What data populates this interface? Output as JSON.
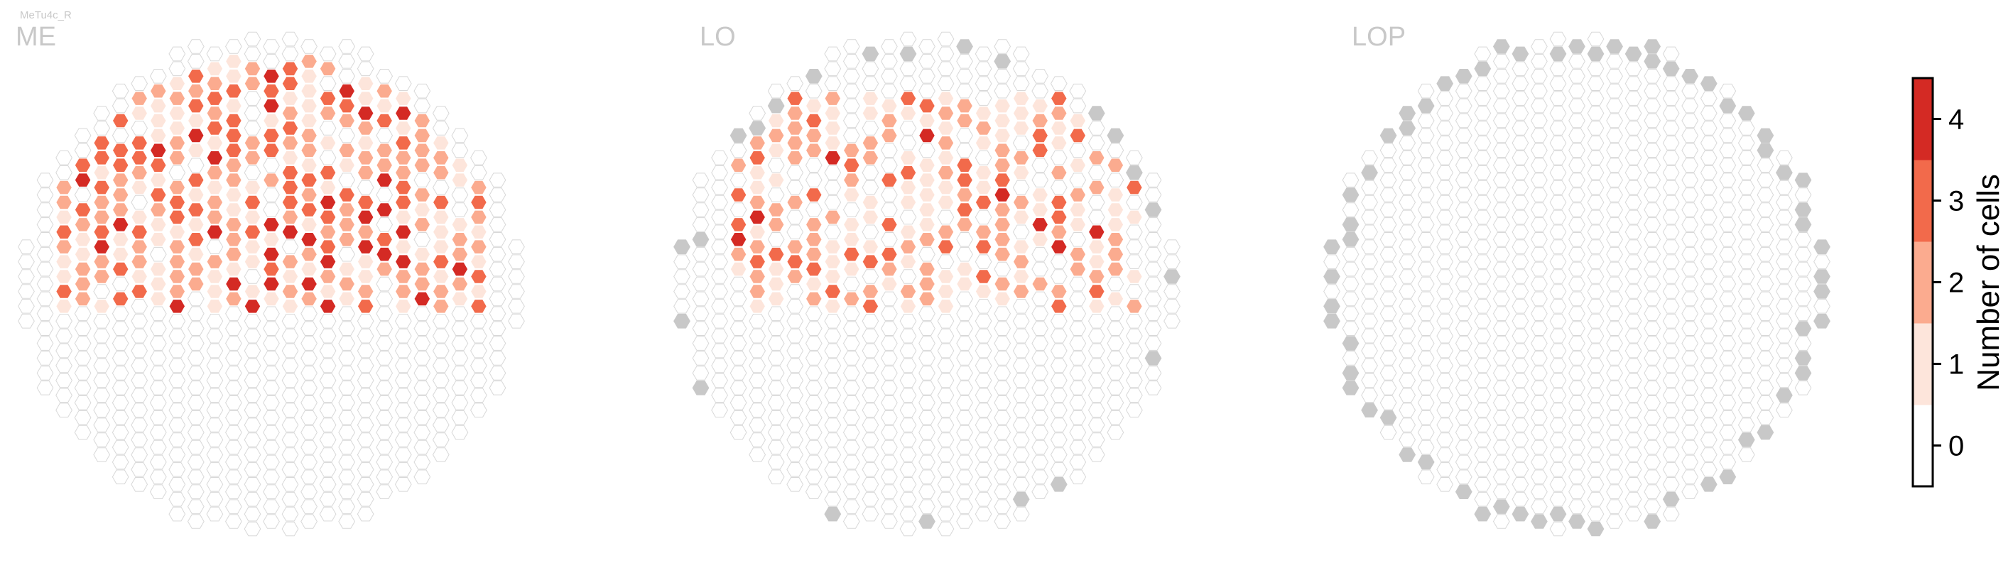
{
  "chart_data": {
    "type": "heatmap",
    "subtitle": "MeTu4c_R",
    "panels": [
      {
        "name": "ME",
        "columns": 27,
        "rows": 34,
        "coverage": {
          "shape": "upper-region",
          "cutoff_fraction": 0.55,
          "hotspot_strength": 1.0
        },
        "out_of_range_count": 0
      },
      {
        "name": "LO",
        "columns": 27,
        "rows": 34,
        "coverage": {
          "shape": "band",
          "band": [
            0.12,
            0.55
          ],
          "hotspot_strength": 0.85
        },
        "out_of_range_count": 22
      },
      {
        "name": "LOP",
        "columns": 27,
        "rows": 34,
        "coverage": {
          "shape": "none"
        },
        "out_of_range_count": 64
      }
    ],
    "colorbar": {
      "label": "Number of cells",
      "ticks": [
        "0",
        "1",
        "2",
        "3",
        "4"
      ],
      "bins": [
        {
          "value": 0,
          "color": "#ffffff"
        },
        {
          "value": 1,
          "color": "#fde5db"
        },
        {
          "value": 2,
          "color": "#fbab8f"
        },
        {
          "value": 3,
          "color": "#f26a4b"
        },
        {
          "value": 4,
          "color": "#d42a24"
        }
      ],
      "range": [
        -0.5,
        4.5
      ]
    },
    "colors": {
      "empty_outline": "#d8d8d8",
      "out_of_range": "#c8c8c8"
    }
  }
}
